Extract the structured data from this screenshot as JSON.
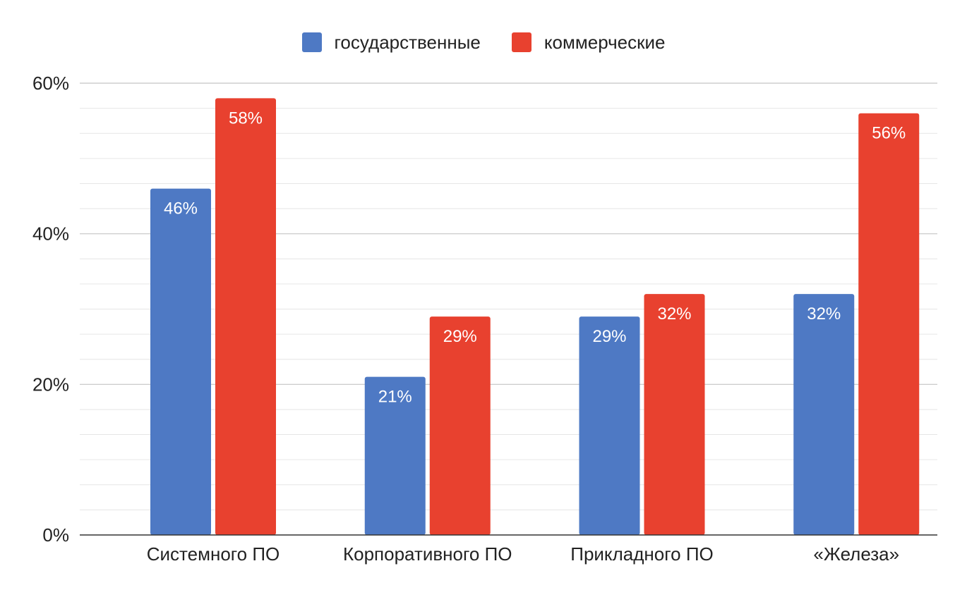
{
  "chart_data": {
    "type": "bar",
    "title": "",
    "xlabel": "",
    "ylabel": "",
    "categories": [
      "Системного ПО",
      "Корпоративного ПО",
      "Прикладного ПО",
      "«Железа»"
    ],
    "series": [
      {
        "name": "государственные",
        "color": "#4e79c4",
        "values": [
          46,
          21,
          29,
          32
        ],
        "labels": [
          "46%",
          "21%",
          "29%",
          "32%"
        ]
      },
      {
        "name": "коммерческие",
        "color": "#e8412f",
        "values": [
          58,
          29,
          32,
          56
        ],
        "labels": [
          "58%",
          "29%",
          "32%",
          "56%"
        ]
      }
    ],
    "ylim": [
      0,
      60
    ],
    "yticks": [
      0,
      20,
      40,
      60
    ],
    "ytick_labels": [
      "0%",
      "20%",
      "40%",
      "60%"
    ],
    "minor_grid_step": 3.3333,
    "grid": true,
    "legend_position": "top-center"
  }
}
